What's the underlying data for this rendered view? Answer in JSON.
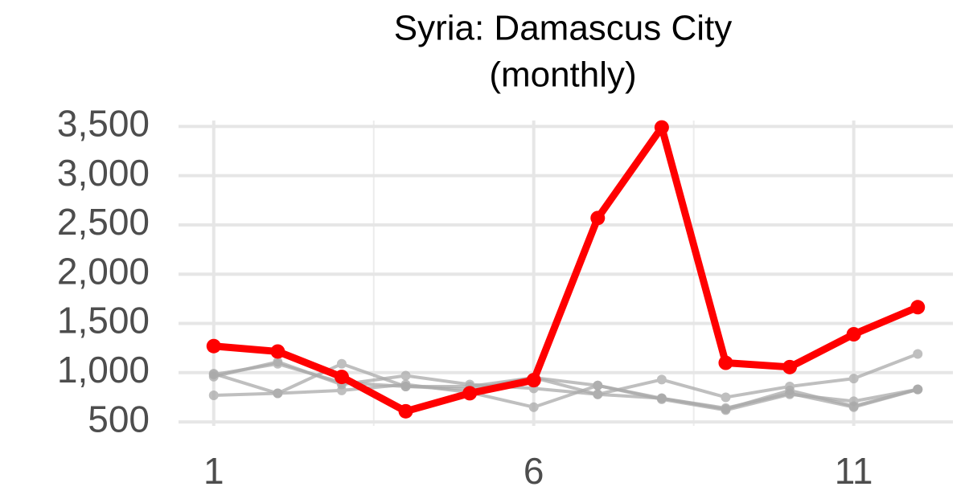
{
  "chart_data": {
    "type": "line",
    "title": "Syria: Damascus City",
    "subtitle": "(monthly)",
    "x": [
      1,
      2,
      3,
      4,
      5,
      6,
      7,
      8,
      9,
      10,
      11,
      12
    ],
    "series": [
      {
        "color": "#aaaaaa",
        "values": [
          990,
          790,
          1090,
          860,
          830,
          950,
          870,
          740,
          630,
          820,
          660,
          830
        ]
      },
      {
        "color": "#aaaaaa",
        "values": [
          960,
          1110,
          880,
          970,
          880,
          840,
          780,
          930,
          750,
          860,
          940,
          1190
        ]
      },
      {
        "color": "#aaaaaa",
        "values": [
          770,
          790,
          820,
          880,
          800,
          650,
          870,
          730,
          620,
          780,
          710,
          830
        ]
      },
      {
        "color": "#aaaaaa",
        "values": [
          980,
          1090,
          900,
          860,
          860,
          950,
          780,
          740,
          640,
          790,
          650,
          830
        ]
      },
      {
        "color": "#ff0000",
        "values": [
          1270,
          1215,
          957,
          608,
          791,
          924,
          2570,
          3490,
          1100,
          1057,
          1390,
          1665
        ]
      }
    ],
    "xlim": [
      0.45,
      12.55
    ],
    "xticks": [
      1,
      6,
      11
    ],
    "xminor": [
      3.5,
      8.5
    ],
    "ylim": [
      460,
      3560
    ],
    "yticks": [
      {
        "value": 500,
        "label": "500"
      },
      {
        "value": 1000,
        "label": "1,000"
      },
      {
        "value": 1500,
        "label": "1,500"
      },
      {
        "value": 2000,
        "label": "2,000"
      },
      {
        "value": 2500,
        "label": "2,500"
      },
      {
        "value": 3000,
        "label": "3,000"
      },
      {
        "value": 3500,
        "label": "3,500"
      }
    ],
    "grid": true
  }
}
